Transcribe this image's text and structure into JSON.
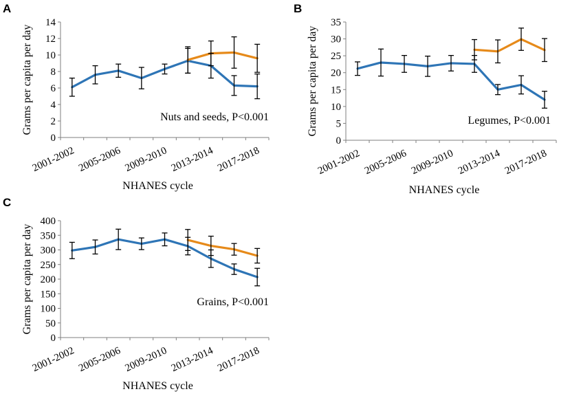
{
  "colors": {
    "series_a": "#2e75b6",
    "series_b": "#e68a1a"
  },
  "chart_data": [
    {
      "panel": "A",
      "type": "line",
      "ylabel": "Grams per capita per day",
      "xlabel": "NHANES cycle",
      "annotation": "Nuts and seeds, P<0.001",
      "ylim": [
        0,
        14
      ],
      "yticks": [
        0,
        2,
        4,
        6,
        8,
        10,
        12,
        14
      ],
      "x_tick_labels": [
        "2001-2002",
        "2005-2006",
        "2009-2010",
        "2013-2014",
        "2017-2018"
      ],
      "n_points": 9,
      "series": [
        {
          "name": "blue",
          "color_key": "series_a",
          "start_index": 0,
          "values": [
            6.1,
            7.6,
            8.1,
            7.2,
            8.3,
            9.3,
            8.7,
            6.3,
            6.2
          ],
          "err": [
            1.1,
            1.1,
            0.8,
            1.3,
            0.6,
            1.5,
            1.5,
            1.2,
            1.5
          ]
        },
        {
          "name": "orange",
          "color_key": "series_b",
          "start_index": 5,
          "values": [
            9.4,
            10.2,
            10.3,
            9.6
          ],
          "err": [
            1.6,
            1.5,
            1.9,
            1.7
          ]
        }
      ]
    },
    {
      "panel": "B",
      "type": "line",
      "ylabel": "Grams per capita per day",
      "xlabel": "NHANES cycle",
      "annotation": "Legumes, P<0.001",
      "ylim": [
        0,
        35
      ],
      "yticks": [
        0,
        5,
        10,
        15,
        20,
        25,
        30,
        35
      ],
      "x_tick_labels": [
        "2001-2002",
        "2005-2006",
        "2009-2010",
        "2013-2014",
        "2017-2018"
      ],
      "n_points": 9,
      "series": [
        {
          "name": "blue",
          "color_key": "series_a",
          "start_index": 0,
          "values": [
            21.2,
            23.0,
            22.6,
            21.9,
            22.8,
            22.6,
            15.0,
            16.4,
            12.0
          ],
          "err": [
            2.0,
            4.0,
            2.5,
            3.0,
            2.3,
            2.5,
            1.5,
            2.7,
            2.5
          ]
        },
        {
          "name": "orange",
          "color_key": "series_b",
          "start_index": 5,
          "values": [
            26.8,
            26.3,
            29.9,
            26.7
          ],
          "err": [
            3.0,
            3.4,
            3.3,
            3.4
          ]
        }
      ]
    },
    {
      "panel": "C",
      "type": "line",
      "ylabel": "Grams per capita per day",
      "xlabel": "NHANES cycle",
      "annotation": "Grains, P<0.001",
      "ylim": [
        0,
        400
      ],
      "yticks": [
        0,
        50,
        100,
        150,
        200,
        250,
        300,
        350,
        400
      ],
      "x_tick_labels": [
        "2001-2002",
        "2005-2006",
        "2009-2010",
        "2013-2014",
        "2017-2018"
      ],
      "n_points": 9,
      "series": [
        {
          "name": "blue",
          "color_key": "series_a",
          "start_index": 0,
          "values": [
            298,
            310,
            336,
            321,
            336,
            313,
            270,
            234,
            207
          ],
          "err": [
            28,
            24,
            35,
            20,
            22,
            30,
            30,
            18,
            30
          ]
        },
        {
          "name": "orange",
          "color_key": "series_b",
          "start_index": 5,
          "values": [
            334,
            314,
            302,
            280
          ],
          "err": [
            36,
            33,
            20,
            25
          ]
        }
      ]
    }
  ]
}
